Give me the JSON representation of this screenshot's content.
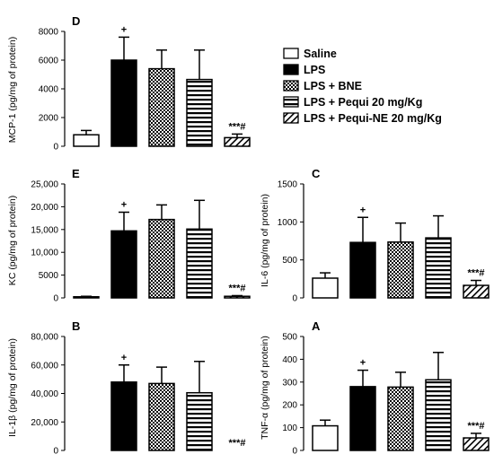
{
  "legend": [
    "Saline",
    "LPS",
    "LPS + BNE",
    "LPS + Pequi 20 mg/Kg",
    "LPS + Pequi-NE 20 mg/Kg"
  ],
  "colors": {
    "bar_fill": "#ffffff",
    "solid": "#000000",
    "stroke": "#000000"
  },
  "patterns": [
    "open",
    "solid",
    "checker",
    "horizontal-lines",
    "diagonal-lines"
  ],
  "chart_data": [
    {
      "type": "bar",
      "panel": "D",
      "ylabel": "MCP-1  (pg/mg of protein)",
      "ylim": [
        0,
        8000
      ],
      "yticks": [
        "0",
        "2000",
        "4000",
        "6000",
        "8000"
      ],
      "values": [
        800,
        6000,
        5400,
        4650,
        600
      ],
      "errors": [
        300,
        1600,
        1300,
        2050,
        250
      ],
      "annotations": [
        "",
        "+",
        "",
        "",
        "***#"
      ]
    },
    {
      "type": "bar",
      "panel": "E",
      "ylabel": "KC (pg/mg of protein)",
      "ylim": [
        0,
        25000
      ],
      "yticks": [
        "0",
        "5000",
        "10,000",
        "15,000",
        "20,000",
        "25,000"
      ],
      "values": [
        250,
        14700,
        17200,
        15100,
        350
      ],
      "errors": [
        100,
        4100,
        3200,
        6300,
        150
      ],
      "annotations": [
        "",
        "+",
        "",
        "",
        "***#"
      ]
    },
    {
      "type": "bar",
      "panel": "C",
      "ylabel": "IL-6 (pg/mg of protein)",
      "ylim": [
        0,
        1500
      ],
      "yticks": [
        "0",
        "500",
        "1000",
        "1500"
      ],
      "values": [
        260,
        730,
        735,
        790,
        165
      ],
      "errors": [
        70,
        330,
        250,
        290,
        65
      ],
      "annotations": [
        "",
        "+",
        "",
        "",
        "***#"
      ]
    },
    {
      "type": "bar",
      "panel": "B",
      "ylabel": "IL-1β  (pg/mg of protein)",
      "ylim": [
        0,
        80000
      ],
      "yticks": [
        "0",
        "20,000",
        "40,000",
        "60,000",
        "80,000"
      ],
      "values": [
        0,
        48000,
        47000,
        40500,
        0
      ],
      "errors": [
        0,
        12000,
        11500,
        22000,
        0
      ],
      "annotations": [
        "",
        "+",
        "",
        "",
        "***#"
      ]
    },
    {
      "type": "bar",
      "panel": "A",
      "ylabel": "TNF-α  (pg/mg of protein)",
      "ylim": [
        0,
        500
      ],
      "yticks": [
        "0",
        "100",
        "200",
        "300",
        "400",
        "500"
      ],
      "values": [
        108,
        280,
        278,
        310,
        55
      ],
      "errors": [
        25,
        72,
        65,
        120,
        20
      ],
      "annotations": [
        "",
        "+",
        "",
        "",
        "***#"
      ]
    }
  ]
}
